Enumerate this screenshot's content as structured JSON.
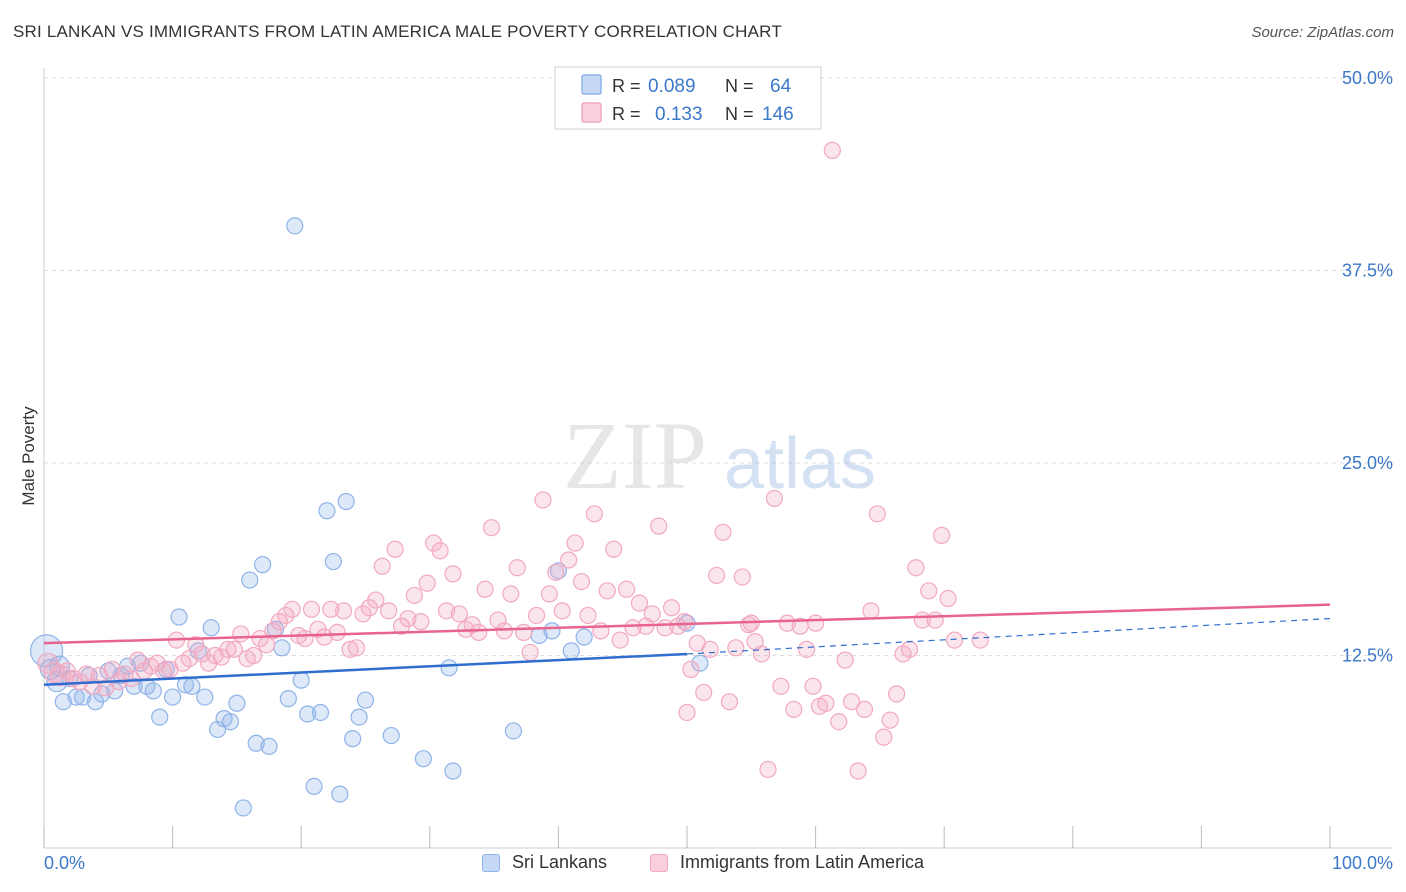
{
  "header": {
    "title": "SRI LANKAN VS IMMIGRANTS FROM LATIN AMERICA MALE POVERTY CORRELATION CHART",
    "source": "Source: ZipAtlas.com"
  },
  "watermark": {
    "zip": "ZIP",
    "atlas": "atlas"
  },
  "colors": {
    "blue": "#8fb3e8",
    "blue_line": "#2f6ecf",
    "pink": "#f2a8c0",
    "pink_line": "#e8648f",
    "axis_text": "#3b78c8",
    "grid": "#dddddd"
  },
  "legend_box": {
    "rows": [
      {
        "r_label": "R = ",
        "r_value": "0.089",
        "n_label": "N = ",
        "n_value": "64",
        "color": "blue"
      },
      {
        "r_label": "R = ",
        "r_value": "0.133",
        "n_label": "N = ",
        "n_value": "146",
        "color": "pink"
      }
    ]
  },
  "chart_data": {
    "type": "scatter",
    "xlabel": "",
    "ylabel": "Male Poverty",
    "xlim": [
      0,
      100
    ],
    "ylim": [
      0,
      50
    ],
    "x_tick_labels": [
      "0.0%",
      "100.0%"
    ],
    "y_ticks": [
      12.5,
      25.0,
      37.5,
      50.0
    ],
    "y_tick_labels": [
      "12.5%",
      "25.0%",
      "37.5%",
      "50.0%"
    ],
    "grid": true,
    "legend_position": "top-center",
    "series": [
      {
        "name": "Sri Lankans",
        "color": "blue",
        "trend": {
          "x": [
            0,
            50
          ],
          "y": [
            10.6,
            12.6
          ],
          "dashed_x": [
            50,
            100
          ],
          "dashed_y": [
            12.6,
            14.9
          ]
        },
        "points": [
          [
            0.2,
            12.8,
            16
          ],
          [
            0.5,
            11.6,
            10
          ],
          [
            1,
            10.8,
            10
          ],
          [
            1.5,
            9.5,
            8
          ],
          [
            2,
            11,
            8
          ],
          [
            2.5,
            9.8,
            8
          ],
          [
            3,
            9.8,
            8
          ],
          [
            3.5,
            11.2,
            8
          ],
          [
            4,
            9.5,
            8
          ],
          [
            4.5,
            10,
            8
          ],
          [
            5,
            11.5,
            8
          ],
          [
            5.5,
            10.2,
            8
          ],
          [
            6,
            11.2,
            8
          ],
          [
            6.5,
            11.8,
            8
          ],
          [
            7,
            10.5,
            8
          ],
          [
            7.5,
            12,
            8
          ],
          [
            8,
            10.5,
            8
          ],
          [
            8.5,
            10.2,
            8
          ],
          [
            9,
            8.5,
            8
          ],
          [
            9.5,
            11.6,
            8
          ],
          [
            10,
            9.8,
            8
          ],
          [
            10.5,
            15,
            8
          ],
          [
            11,
            10.6,
            8
          ],
          [
            11.5,
            10.5,
            8
          ],
          [
            12,
            12.8,
            8
          ],
          [
            12.5,
            9.8,
            8
          ],
          [
            13,
            14.3,
            8
          ],
          [
            13.5,
            7.7,
            8
          ],
          [
            14,
            8.4,
            8
          ],
          [
            14.5,
            8.2,
            8
          ],
          [
            15,
            9.4,
            8
          ],
          [
            15.5,
            2.6,
            8
          ],
          [
            16,
            17.4,
            8
          ],
          [
            16.5,
            6.8,
            8
          ],
          [
            17,
            18.4,
            8
          ],
          [
            17.5,
            6.6,
            8
          ],
          [
            18,
            14.2,
            8
          ],
          [
            18.5,
            13,
            8
          ],
          [
            19,
            9.7,
            8
          ],
          [
            19.5,
            40.4,
            8
          ],
          [
            20,
            10.9,
            8
          ],
          [
            20.5,
            8.7,
            8
          ],
          [
            21,
            4,
            8
          ],
          [
            21.5,
            8.8,
            8
          ],
          [
            22,
            21.9,
            8
          ],
          [
            22.5,
            18.6,
            8
          ],
          [
            23,
            3.5,
            8
          ],
          [
            23.5,
            22.5,
            8
          ],
          [
            24,
            7.1,
            8
          ],
          [
            24.5,
            8.5,
            8
          ],
          [
            25,
            9.6,
            8
          ],
          [
            27,
            7.3,
            8
          ],
          [
            29.5,
            5.8,
            8
          ],
          [
            31.5,
            11.7,
            8
          ],
          [
            31.8,
            5,
            8
          ],
          [
            36.5,
            7.6,
            8
          ],
          [
            38.5,
            13.8,
            8
          ],
          [
            39.5,
            14.1,
            8
          ],
          [
            40,
            18,
            8
          ],
          [
            50,
            14.6,
            8
          ],
          [
            51,
            12,
            8
          ],
          [
            42,
            13.7,
            8
          ],
          [
            41,
            12.8,
            8
          ],
          [
            1.2,
            11.8,
            10
          ]
        ]
      },
      {
        "name": "Immigrants from Latin America",
        "color": "pink",
        "trend": {
          "x": [
            0,
            100
          ],
          "y": [
            13.3,
            15.8
          ]
        },
        "points": [
          [
            0.3,
            12,
            10
          ],
          [
            0.8,
            11.4,
            10
          ],
          [
            1.3,
            11.2,
            10
          ],
          [
            1.8,
            11.5,
            8
          ],
          [
            2.3,
            11,
            8
          ],
          [
            2.8,
            10.8,
            8
          ],
          [
            3.3,
            11.3,
            8
          ],
          [
            3.8,
            10.5,
            8
          ],
          [
            4.3,
            11.2,
            8
          ],
          [
            4.8,
            10.4,
            8
          ],
          [
            5.3,
            11.6,
            8
          ],
          [
            5.8,
            10.8,
            8
          ],
          [
            6.3,
            11.3,
            8
          ],
          [
            6.8,
            11,
            8
          ],
          [
            7.3,
            12.2,
            8
          ],
          [
            7.8,
            11.5,
            8
          ],
          [
            8.3,
            11.8,
            8
          ],
          [
            8.8,
            12,
            8
          ],
          [
            9.3,
            11.5,
            8
          ],
          [
            9.8,
            11.6,
            8
          ],
          [
            10.3,
            13.5,
            8
          ],
          [
            10.8,
            12,
            8
          ],
          [
            11.3,
            12.3,
            8
          ],
          [
            11.8,
            13.2,
            8
          ],
          [
            12.3,
            12.6,
            8
          ],
          [
            12.8,
            12,
            8
          ],
          [
            13.3,
            12.5,
            8
          ],
          [
            13.8,
            12.4,
            8
          ],
          [
            14.3,
            12.9,
            8
          ],
          [
            14.8,
            12.9,
            8
          ],
          [
            15.3,
            13.9,
            8
          ],
          [
            15.8,
            12.3,
            8
          ],
          [
            16.3,
            12.5,
            8
          ],
          [
            16.8,
            13.6,
            8
          ],
          [
            17.3,
            13.2,
            8
          ],
          [
            17.8,
            14.1,
            8
          ],
          [
            18.3,
            14.7,
            8
          ],
          [
            18.8,
            15.1,
            8
          ],
          [
            19.3,
            15.5,
            8
          ],
          [
            19.8,
            13.8,
            8
          ],
          [
            20.3,
            13.6,
            8
          ],
          [
            20.8,
            15.5,
            8
          ],
          [
            21.3,
            14.2,
            8
          ],
          [
            21.8,
            13.7,
            8
          ],
          [
            22.3,
            15.5,
            8
          ],
          [
            22.8,
            14,
            8
          ],
          [
            23.3,
            15.4,
            8
          ],
          [
            23.8,
            12.9,
            8
          ],
          [
            24.3,
            13,
            8
          ],
          [
            24.8,
            15.2,
            8
          ],
          [
            25.3,
            15.6,
            8
          ],
          [
            25.8,
            16.1,
            8
          ],
          [
            26.3,
            18.3,
            8
          ],
          [
            26.8,
            15.4,
            8
          ],
          [
            27.3,
            19.4,
            8
          ],
          [
            27.8,
            14.4,
            8
          ],
          [
            28.3,
            14.9,
            8
          ],
          [
            28.8,
            16.4,
            8
          ],
          [
            29.3,
            14.7,
            8
          ],
          [
            29.8,
            17.2,
            8
          ],
          [
            30.3,
            19.8,
            8
          ],
          [
            30.8,
            19.3,
            8
          ],
          [
            31.3,
            15.4,
            8
          ],
          [
            31.8,
            17.8,
            8
          ],
          [
            32.3,
            15.2,
            8
          ],
          [
            32.8,
            14.2,
            8
          ],
          [
            33.3,
            14.5,
            8
          ],
          [
            33.8,
            14,
            8
          ],
          [
            34.3,
            16.8,
            8
          ],
          [
            34.8,
            20.8,
            8
          ],
          [
            35.3,
            14.8,
            8
          ],
          [
            35.8,
            14.1,
            8
          ],
          [
            36.3,
            16.5,
            8
          ],
          [
            36.8,
            18.2,
            8
          ],
          [
            37.3,
            14,
            8
          ],
          [
            37.8,
            12.7,
            8
          ],
          [
            38.3,
            15.1,
            8
          ],
          [
            38.8,
            22.6,
            8
          ],
          [
            39.3,
            16.5,
            8
          ],
          [
            39.8,
            17.9,
            8
          ],
          [
            40.3,
            15.4,
            8
          ],
          [
            40.8,
            18.7,
            8
          ],
          [
            41.3,
            19.8,
            8
          ],
          [
            41.8,
            17.3,
            8
          ],
          [
            42.3,
            15.1,
            8
          ],
          [
            42.8,
            21.7,
            8
          ],
          [
            43.3,
            14.1,
            8
          ],
          [
            43.8,
            16.7,
            8
          ],
          [
            44.3,
            19.4,
            8
          ],
          [
            44.8,
            13.5,
            8
          ],
          [
            45.3,
            16.8,
            8
          ],
          [
            45.8,
            14.3,
            8
          ],
          [
            46.3,
            15.9,
            8
          ],
          [
            46.8,
            14.4,
            8
          ],
          [
            47.3,
            15.2,
            8
          ],
          [
            47.8,
            20.9,
            8
          ],
          [
            48.3,
            14.3,
            8
          ],
          [
            48.8,
            15.6,
            8
          ],
          [
            49.3,
            14.4,
            8
          ],
          [
            49.8,
            14.7,
            8
          ],
          [
            50.3,
            11.6,
            8
          ],
          [
            50.8,
            13.3,
            8
          ],
          [
            51.3,
            10.1,
            8
          ],
          [
            51.8,
            12.9,
            8
          ],
          [
            52.3,
            17.7,
            8
          ],
          [
            52.8,
            20.5,
            8
          ],
          [
            53.3,
            9.5,
            8
          ],
          [
            53.8,
            13,
            8
          ],
          [
            54.3,
            17.6,
            8
          ],
          [
            54.8,
            14.5,
            8
          ],
          [
            55.3,
            13.4,
            8
          ],
          [
            55.8,
            12.6,
            8
          ],
          [
            56.3,
            5.1,
            8
          ],
          [
            56.8,
            22.7,
            8
          ],
          [
            57.3,
            10.5,
            8
          ],
          [
            57.8,
            14.6,
            8
          ],
          [
            58.3,
            9,
            8
          ],
          [
            58.8,
            14.4,
            8
          ],
          [
            59.3,
            12.9,
            8
          ],
          [
            59.8,
            10.5,
            8
          ],
          [
            60.3,
            9.2,
            8
          ],
          [
            60.8,
            9.4,
            8
          ],
          [
            61.3,
            45.3,
            8
          ],
          [
            61.8,
            8.2,
            8
          ],
          [
            62.3,
            12.2,
            8
          ],
          [
            62.8,
            9.5,
            8
          ],
          [
            63.3,
            5,
            8
          ],
          [
            63.8,
            9,
            8
          ],
          [
            64.3,
            15.4,
            8
          ],
          [
            64.8,
            21.7,
            8
          ],
          [
            65.3,
            7.2,
            8
          ],
          [
            65.8,
            8.3,
            8
          ],
          [
            66.3,
            10,
            8
          ],
          [
            66.8,
            12.6,
            8
          ],
          [
            67.3,
            12.9,
            8
          ],
          [
            67.8,
            18.2,
            8
          ],
          [
            68.3,
            14.8,
            8
          ],
          [
            68.8,
            16.7,
            8
          ],
          [
            69.3,
            14.8,
            8
          ],
          [
            69.8,
            20.3,
            8
          ],
          [
            70.3,
            16.2,
            8
          ],
          [
            70.8,
            13.5,
            8
          ],
          [
            50,
            8.8,
            8
          ],
          [
            60,
            14.6,
            8
          ],
          [
            72.8,
            13.5,
            8
          ],
          [
            55,
            14.6,
            8
          ]
        ]
      }
    ]
  },
  "bottom_legend": [
    {
      "label": "Sri Lankans",
      "color": "blue"
    },
    {
      "label": "Immigrants from Latin America",
      "color": "pink"
    }
  ]
}
